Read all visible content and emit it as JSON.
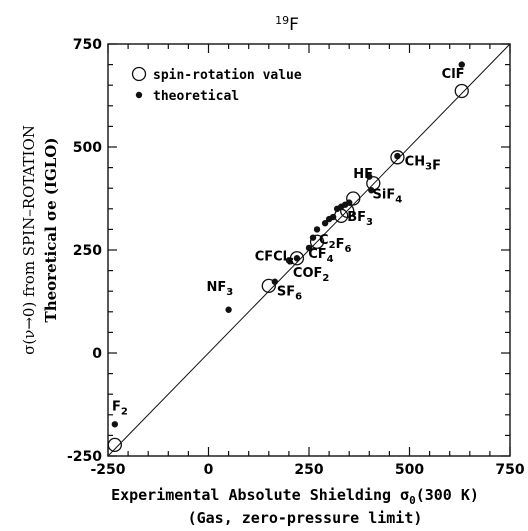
{
  "chart_data": {
    "type": "scatter",
    "title": "19F",
    "xlabel": "Experimental Absolute Shielding σ0(300 K)",
    "xlabel2": "(Gas, zero-pressure limit)",
    "ylabel": "σ(ν→0) from SPIN–ROTATION",
    "ylabel2": "Theoretical σe (IGLO)",
    "xlim": [
      -250,
      750
    ],
    "ylim": [
      -250,
      750
    ],
    "xticks": [
      -250,
      0,
      250,
      500,
      750
    ],
    "yticks": [
      -250,
      0,
      250,
      500,
      750
    ],
    "xtick_labels": [
      "-250",
      "0",
      "250",
      "500",
      "750"
    ],
    "ytick_labels": [
      "-250",
      "0",
      "250",
      "500",
      "750"
    ],
    "grid": false,
    "legend_position": "top-left",
    "reference_line": {
      "type": "y=x"
    },
    "series": [
      {
        "name": "spin-rotation value",
        "marker": "open-circle",
        "points": [
          {
            "x": -233,
            "y": -223
          },
          {
            "x": 150,
            "y": 163
          },
          {
            "x": 220,
            "y": 230
          },
          {
            "x": 270,
            "y": 270
          },
          {
            "x": 330,
            "y": 333
          },
          {
            "x": 345,
            "y": 345
          },
          {
            "x": 360,
            "y": 375
          },
          {
            "x": 410,
            "y": 412
          },
          {
            "x": 470,
            "y": 475
          },
          {
            "x": 630,
            "y": 636
          }
        ]
      },
      {
        "name": "theoretical",
        "marker": "filled-dot",
        "points": [
          {
            "x": -233,
            "y": -173
          },
          {
            "x": 50,
            "y": 105
          },
          {
            "x": 165,
            "y": 173
          },
          {
            "x": 200,
            "y": 225
          },
          {
            "x": 220,
            "y": 230
          },
          {
            "x": 250,
            "y": 255
          },
          {
            "x": 260,
            "y": 280
          },
          {
            "x": 270,
            "y": 300
          },
          {
            "x": 290,
            "y": 315
          },
          {
            "x": 300,
            "y": 325
          },
          {
            "x": 310,
            "y": 330
          },
          {
            "x": 320,
            "y": 350
          },
          {
            "x": 330,
            "y": 355
          },
          {
            "x": 340,
            "y": 360
          },
          {
            "x": 350,
            "y": 365
          },
          {
            "x": 400,
            "y": 428
          },
          {
            "x": 405,
            "y": 395
          },
          {
            "x": 470,
            "y": 478
          },
          {
            "x": 630,
            "y": 700
          }
        ]
      }
    ],
    "annotations": [
      {
        "text": "F",
        "sub": "2",
        "x": -240,
        "y": -140
      },
      {
        "text": "NF",
        "sub": "3",
        "x": -5,
        "y": 150
      },
      {
        "text": "CFCl",
        "sub": "3",
        "x": 115,
        "y": 225
      },
      {
        "text": "SF",
        "sub": "6",
        "x": 170,
        "y": 140
      },
      {
        "text": "COF",
        "sub": "2",
        "x": 210,
        "y": 185
      },
      {
        "text": "CF",
        "sub": "4",
        "x": 248,
        "y": 230
      },
      {
        "text": "C",
        "sub": "2",
        "text2": "F",
        "sub2": "6",
        "x": 275,
        "y": 265
      },
      {
        "text": "BF",
        "sub": "3",
        "x": 345,
        "y": 320
      },
      {
        "text": "SiF",
        "sub": "4",
        "x": 408,
        "y": 375
      },
      {
        "text": "HF",
        "x": 360,
        "y": 425
      },
      {
        "text": "CH",
        "sub": "3",
        "text2": "F",
        "x": 488,
        "y": 455
      },
      {
        "text": "ClF",
        "x": 580,
        "y": 668
      }
    ]
  }
}
